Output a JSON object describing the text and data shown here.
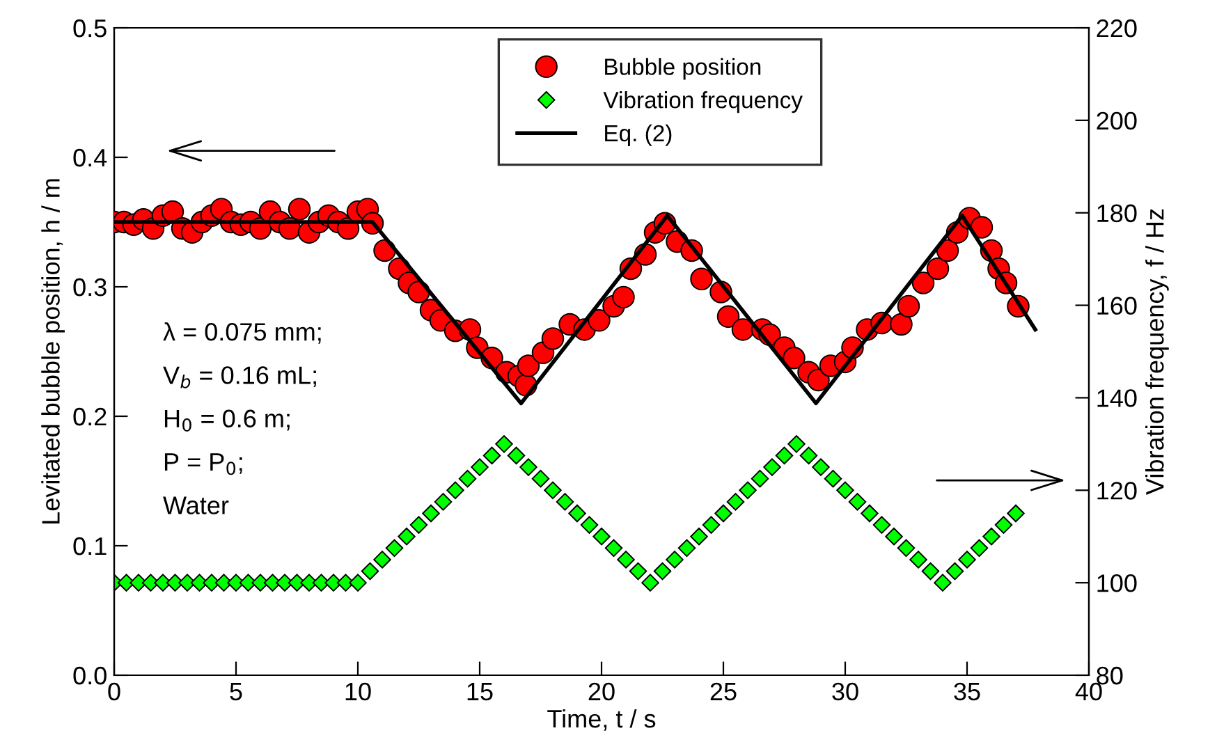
{
  "chart_data": {
    "type": "scatter",
    "xlabel": "Time, t / s",
    "ylabel": "Levitated bubble position, h / m",
    "y2label": "Vibration frequency, f / Hz",
    "xlim": [
      0,
      40
    ],
    "xticks": [
      0,
      5,
      10,
      15,
      20,
      25,
      30,
      35,
      40
    ],
    "ylim": [
      0,
      0.5
    ],
    "yticks": [
      {
        "value": 0,
        "label": "0.0"
      },
      0.1,
      0.2,
      0.3,
      0.4,
      0.5
    ],
    "y2lim": [
      80,
      220
    ],
    "y2ticks": [
      80,
      100,
      120,
      140,
      160,
      180,
      200,
      220
    ],
    "legend": "top",
    "grid": false,
    "annotations": [
      "λ = 0.075 mm;",
      "V$_{b}$ = 0.16 mL;",
      "H$_{0}$ = 0.6 m;",
      "P = P$_{0}$;",
      "Water"
    ],
    "series": [
      {
        "name": "Bubble position",
        "marker": "circle",
        "color": "#ff0000",
        "x": [
          0,
          0.4,
          0.8,
          1.2,
          1.6,
          2.0,
          2.4,
          2.8,
          3.2,
          3.6,
          4.0,
          4.4,
          4.8,
          5.2,
          5.6,
          6.0,
          6.4,
          6.8,
          7.2,
          7.6,
          8.0,
          8.4,
          8.8,
          9.2,
          9.6,
          10.0,
          10.4,
          10.6,
          11.1,
          11.7,
          12.1,
          12.5,
          13.0,
          13.4,
          14.0,
          14.6,
          14.9,
          15.5,
          16.1,
          16.6,
          16.9,
          17.0,
          17.6,
          18.0,
          18.7,
          19.3,
          19.9,
          20.5,
          20.9,
          21.2,
          21.8,
          22.2,
          22.6,
          23.1,
          23.7,
          24.1,
          24.9,
          25.2,
          25.8,
          26.6,
          26.9,
          27.5,
          27.9,
          28.5,
          28.9,
          29.4,
          30.0,
          30.3,
          30.9,
          31.5,
          32.3,
          32.6,
          33.2,
          33.8,
          34.2,
          34.6,
          35.1,
          35.6,
          36.0,
          36.3,
          36.6,
          37.1
        ],
        "values": [
          0.35,
          0.35,
          0.348,
          0.352,
          0.345,
          0.355,
          0.358,
          0.345,
          0.342,
          0.35,
          0.355,
          0.36,
          0.35,
          0.348,
          0.35,
          0.345,
          0.358,
          0.35,
          0.345,
          0.36,
          0.342,
          0.35,
          0.355,
          0.35,
          0.345,
          0.358,
          0.36,
          0.349,
          0.328,
          0.314,
          0.303,
          0.296,
          0.282,
          0.274,
          0.266,
          0.267,
          0.253,
          0.245,
          0.234,
          0.231,
          0.224,
          0.239,
          0.249,
          0.26,
          0.271,
          0.267,
          0.274,
          0.285,
          0.292,
          0.314,
          0.325,
          0.342,
          0.349,
          0.335,
          0.328,
          0.306,
          0.296,
          0.277,
          0.267,
          0.267,
          0.263,
          0.253,
          0.245,
          0.234,
          0.228,
          0.239,
          0.242,
          0.253,
          0.267,
          0.272,
          0.271,
          0.285,
          0.303,
          0.314,
          0.328,
          0.342,
          0.353,
          0.346,
          0.328,
          0.314,
          0.303,
          0.285
        ]
      },
      {
        "name": "Vibration frequency",
        "marker": "diamond",
        "color": "#00ff00",
        "axis": "y2",
        "x": [
          0,
          0.5,
          1,
          1.5,
          2,
          2.5,
          3,
          3.5,
          4,
          4.5,
          5,
          5.5,
          6,
          6.5,
          7,
          7.5,
          8,
          8.5,
          9,
          9.5,
          10,
          10.5,
          11,
          11.5,
          12,
          12.5,
          13,
          13.5,
          14,
          14.5,
          15,
          15.5,
          16,
          16.5,
          17,
          17.5,
          18,
          18.5,
          19,
          19.5,
          20,
          20.5,
          21,
          21.5,
          22,
          22.5,
          23,
          23.5,
          24,
          24.5,
          25,
          25.5,
          26,
          26.5,
          27,
          27.5,
          28,
          28.5,
          29,
          29.5,
          30,
          30.5,
          31,
          31.5,
          32,
          32.5,
          33,
          33.5,
          34,
          34.5,
          35,
          35.5,
          36,
          36.5,
          37
        ],
        "values": [
          100,
          100,
          100,
          100,
          100,
          100,
          100,
          100,
          100,
          100,
          100,
          100,
          100,
          100,
          100,
          100,
          100,
          100,
          100,
          100,
          100,
          102.5,
          105,
          107.5,
          110,
          112.5,
          115,
          117.5,
          120,
          122.5,
          125,
          127.5,
          130,
          127.5,
          125,
          122.5,
          120,
          117.5,
          115,
          112.5,
          110,
          107.5,
          105,
          102.5,
          100,
          102.5,
          105,
          107.5,
          110,
          112.5,
          115,
          117.5,
          120,
          122.5,
          125,
          127.5,
          130,
          127.5,
          125,
          122.5,
          120,
          117.5,
          115,
          112.5,
          110,
          107.5,
          105,
          102.5,
          100,
          102.5,
          105,
          107.5,
          110,
          112.5,
          115
        ]
      },
      {
        "name": "Eq. (2)",
        "type": "line",
        "line_style": "solid",
        "color": "#000000",
        "x": [
          0,
          10.6,
          16.7,
          22.7,
          28.8,
          34.8,
          37.8
        ],
        "values": [
          0.35,
          0.35,
          0.21,
          0.355,
          0.21,
          0.355,
          0.267
        ]
      }
    ]
  }
}
